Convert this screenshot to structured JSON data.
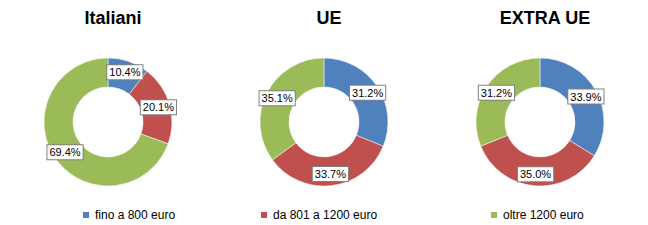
{
  "chart_data": [
    {
      "type": "pie",
      "title": "Italiani",
      "categories": [
        "fino a 800 euro",
        "da 801 a 1200 euro",
        "oltre 1200 euro"
      ],
      "values": [
        10.4,
        20.1,
        69.4
      ],
      "value_labels": [
        "10.4%",
        "20.1%",
        "69.4%"
      ],
      "colors": [
        "#4f81bd",
        "#c0504d",
        "#9bbb59"
      ],
      "data_labels": true,
      "legend": "bottom"
    },
    {
      "type": "pie",
      "title": "UE",
      "categories": [
        "fino a 800 euro",
        "da 801 a 1200 euro",
        "oltre 1200 euro"
      ],
      "values": [
        31.2,
        33.7,
        35.1
      ],
      "value_labels": [
        "31.2%",
        "33.7%",
        "35.1%"
      ],
      "colors": [
        "#4f81bd",
        "#c0504d",
        "#9bbb59"
      ],
      "data_labels": true,
      "legend": "bottom"
    },
    {
      "type": "pie",
      "title": "EXTRA UE",
      "categories": [
        "fino a 800 euro",
        "da 801 a 1200 euro",
        "oltre 1200 euro"
      ],
      "values": [
        33.9,
        35.0,
        31.2
      ],
      "value_labels": [
        "33.9%",
        "35.0%",
        "31.2%"
      ],
      "colors": [
        "#4f81bd",
        "#c0504d",
        "#9bbb59"
      ],
      "data_labels": true,
      "legend": "bottom"
    }
  ]
}
